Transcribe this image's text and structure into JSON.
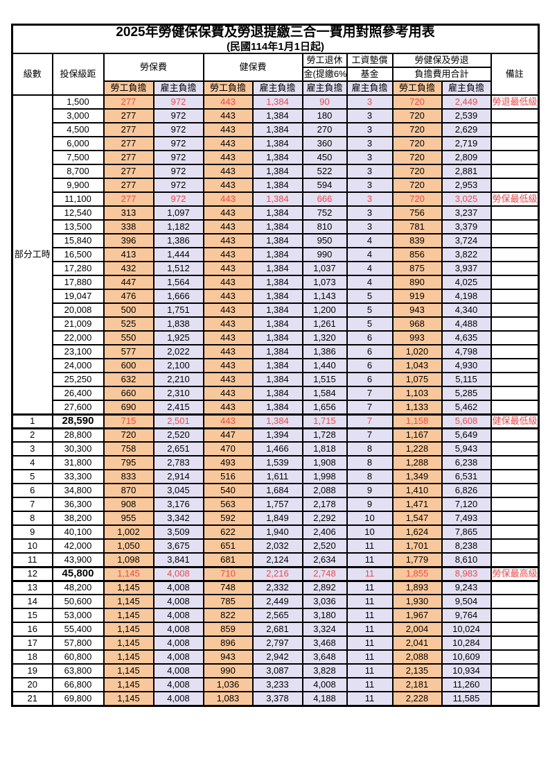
{
  "title": "2025年勞健保保費及勞退提繳三合一費用對照參考用表",
  "subtitle": "(民國114年1月1日起)",
  "header": {
    "level": "級數",
    "bracket": "投保級距",
    "labor_insurance": "勞保費",
    "health_insurance": "健保費",
    "pension_top": "勞工退休",
    "pension_bottom": "金(提繳6%)",
    "wage_fund_top": "工資墊償",
    "wage_fund_bottom": "基金",
    "total_top": "勞健保及勞退",
    "total_bottom": "負擔費用合計",
    "remark": "備註",
    "employee_share": "勞工負擔",
    "employer_share": "雇主負擔"
  },
  "colors": {
    "employee_bg": "#F8C89C",
    "employer_bg": "#E2E0F2",
    "highlight_red": "#E94A4C",
    "border": "#000000"
  },
  "rows": [
    {
      "level": "部分工時",
      "span": 23,
      "bracket": "1,500",
      "v": [
        "277",
        "972",
        "443",
        "1,384",
        "90",
        "3",
        "720",
        "2,449"
      ],
      "remark": "勞退最低級距",
      "red": true
    },
    {
      "bracket": "3,000",
      "v": [
        "277",
        "972",
        "443",
        "1,384",
        "180",
        "3",
        "720",
        "2,539"
      ]
    },
    {
      "bracket": "4,500",
      "v": [
        "277",
        "972",
        "443",
        "1,384",
        "270",
        "3",
        "720",
        "2,629"
      ]
    },
    {
      "bracket": "6,000",
      "v": [
        "277",
        "972",
        "443",
        "1,384",
        "360",
        "3",
        "720",
        "2,719"
      ]
    },
    {
      "bracket": "7,500",
      "v": [
        "277",
        "972",
        "443",
        "1,384",
        "450",
        "3",
        "720",
        "2,809"
      ]
    },
    {
      "bracket": "8,700",
      "v": [
        "277",
        "972",
        "443",
        "1,384",
        "522",
        "3",
        "720",
        "2,881"
      ]
    },
    {
      "bracket": "9,900",
      "v": [
        "277",
        "972",
        "443",
        "1,384",
        "594",
        "3",
        "720",
        "2,953"
      ]
    },
    {
      "bracket": "11,100",
      "v": [
        "277",
        "972",
        "443",
        "1,384",
        "666",
        "3",
        "720",
        "3,025"
      ],
      "remark": "勞保最低級距",
      "red": true
    },
    {
      "bracket": "12,540",
      "v": [
        "313",
        "1,097",
        "443",
        "1,384",
        "752",
        "3",
        "756",
        "3,237"
      ]
    },
    {
      "bracket": "13,500",
      "v": [
        "338",
        "1,182",
        "443",
        "1,384",
        "810",
        "3",
        "781",
        "3,379"
      ]
    },
    {
      "bracket": "15,840",
      "v": [
        "396",
        "1,386",
        "443",
        "1,384",
        "950",
        "4",
        "839",
        "3,724"
      ]
    },
    {
      "bracket": "16,500",
      "v": [
        "413",
        "1,444",
        "443",
        "1,384",
        "990",
        "4",
        "856",
        "3,822"
      ]
    },
    {
      "bracket": "17,280",
      "v": [
        "432",
        "1,512",
        "443",
        "1,384",
        "1,037",
        "4",
        "875",
        "3,937"
      ]
    },
    {
      "bracket": "17,880",
      "v": [
        "447",
        "1,564",
        "443",
        "1,384",
        "1,073",
        "4",
        "890",
        "4,025"
      ]
    },
    {
      "bracket": "19,047",
      "v": [
        "476",
        "1,666",
        "443",
        "1,384",
        "1,143",
        "5",
        "919",
        "4,198"
      ]
    },
    {
      "bracket": "20,008",
      "v": [
        "500",
        "1,751",
        "443",
        "1,384",
        "1,200",
        "5",
        "943",
        "4,340"
      ]
    },
    {
      "bracket": "21,009",
      "v": [
        "525",
        "1,838",
        "443",
        "1,384",
        "1,261",
        "5",
        "968",
        "4,488"
      ]
    },
    {
      "bracket": "22,000",
      "v": [
        "550",
        "1,925",
        "443",
        "1,384",
        "1,320",
        "6",
        "993",
        "4,635"
      ]
    },
    {
      "bracket": "23,100",
      "v": [
        "577",
        "2,022",
        "443",
        "1,384",
        "1,386",
        "6",
        "1,020",
        "4,798"
      ]
    },
    {
      "bracket": "24,000",
      "v": [
        "600",
        "2,100",
        "443",
        "1,384",
        "1,440",
        "6",
        "1,043",
        "4,930"
      ]
    },
    {
      "bracket": "25,250",
      "v": [
        "632",
        "2,210",
        "443",
        "1,384",
        "1,515",
        "6",
        "1,075",
        "5,115"
      ]
    },
    {
      "bracket": "26,400",
      "v": [
        "660",
        "2,310",
        "443",
        "1,384",
        "1,584",
        "7",
        "1,103",
        "5,285"
      ]
    },
    {
      "bracket": "27,600",
      "v": [
        "690",
        "2,415",
        "443",
        "1,384",
        "1,656",
        "7",
        "1,133",
        "5,462"
      ]
    },
    {
      "level": "1",
      "bracket": "28,590",
      "v": [
        "715",
        "2,501",
        "443",
        "1,384",
        "1,715",
        "7",
        "1,158",
        "5,608"
      ],
      "remark": "健保最低級距",
      "red": true,
      "bold": true,
      "thick": true
    },
    {
      "level": "2",
      "bracket": "28,800",
      "v": [
        "720",
        "2,520",
        "447",
        "1,394",
        "1,728",
        "7",
        "1,167",
        "5,649"
      ],
      "thick": true
    },
    {
      "level": "3",
      "bracket": "30,300",
      "v": [
        "758",
        "2,651",
        "470",
        "1,466",
        "1,818",
        "8",
        "1,228",
        "5,943"
      ]
    },
    {
      "level": "4",
      "bracket": "31,800",
      "v": [
        "795",
        "2,783",
        "493",
        "1,539",
        "1,908",
        "8",
        "1,288",
        "6,238"
      ]
    },
    {
      "level": "5",
      "bracket": "33,300",
      "v": [
        "833",
        "2,914",
        "516",
        "1,611",
        "1,998",
        "8",
        "1,349",
        "6,531"
      ]
    },
    {
      "level": "6",
      "bracket": "34,800",
      "v": [
        "870",
        "3,045",
        "540",
        "1,684",
        "2,088",
        "9",
        "1,410",
        "6,826"
      ]
    },
    {
      "level": "7",
      "bracket": "36,300",
      "v": [
        "908",
        "3,176",
        "563",
        "1,757",
        "2,178",
        "9",
        "1,471",
        "7,120"
      ]
    },
    {
      "level": "8",
      "bracket": "38,200",
      "v": [
        "955",
        "3,342",
        "592",
        "1,849",
        "2,292",
        "10",
        "1,547",
        "7,493"
      ]
    },
    {
      "level": "9",
      "bracket": "40,100",
      "v": [
        "1,002",
        "3,509",
        "622",
        "1,940",
        "2,406",
        "10",
        "1,624",
        "7,865"
      ]
    },
    {
      "level": "10",
      "bracket": "42,000",
      "v": [
        "1,050",
        "3,675",
        "651",
        "2,032",
        "2,520",
        "11",
        "1,701",
        "8,238"
      ]
    },
    {
      "level": "11",
      "bracket": "43,900",
      "v": [
        "1,098",
        "3,841",
        "681",
        "2,124",
        "2,634",
        "11",
        "1,779",
        "8,610"
      ]
    },
    {
      "level": "12",
      "bracket": "45,800",
      "v": [
        "1,145",
        "4,008",
        "710",
        "2,216",
        "2,748",
        "11",
        "1,855",
        "8,983"
      ],
      "remark": "勞保最高級距",
      "red": true,
      "bold": true,
      "thick": true
    },
    {
      "level": "13",
      "bracket": "48,200",
      "v": [
        "1,145",
        "4,008",
        "748",
        "2,332",
        "2,892",
        "11",
        "1,893",
        "9,243"
      ],
      "thick": true
    },
    {
      "level": "14",
      "bracket": "50,600",
      "v": [
        "1,145",
        "4,008",
        "785",
        "2,449",
        "3,036",
        "11",
        "1,930",
        "9,504"
      ]
    },
    {
      "level": "15",
      "bracket": "53,000",
      "v": [
        "1,145",
        "4,008",
        "822",
        "2,565",
        "3,180",
        "11",
        "1,967",
        "9,764"
      ]
    },
    {
      "level": "16",
      "bracket": "55,400",
      "v": [
        "1,145",
        "4,008",
        "859",
        "2,681",
        "3,324",
        "11",
        "2,004",
        "10,024"
      ]
    },
    {
      "level": "17",
      "bracket": "57,800",
      "v": [
        "1,145",
        "4,008",
        "896",
        "2,797",
        "3,468",
        "11",
        "2,041",
        "10,284"
      ]
    },
    {
      "level": "18",
      "bracket": "60,800",
      "v": [
        "1,145",
        "4,008",
        "943",
        "2,942",
        "3,648",
        "11",
        "2,088",
        "10,609"
      ]
    },
    {
      "level": "19",
      "bracket": "63,800",
      "v": [
        "1,145",
        "4,008",
        "990",
        "3,087",
        "3,828",
        "11",
        "2,135",
        "10,934"
      ]
    },
    {
      "level": "20",
      "bracket": "66,800",
      "v": [
        "1,145",
        "4,008",
        "1,036",
        "3,233",
        "4,008",
        "11",
        "2,181",
        "11,260"
      ]
    },
    {
      "level": "21",
      "bracket": "69,800",
      "v": [
        "1,145",
        "4,008",
        "1,083",
        "3,378",
        "4,188",
        "11",
        "2,228",
        "11,585"
      ]
    }
  ]
}
